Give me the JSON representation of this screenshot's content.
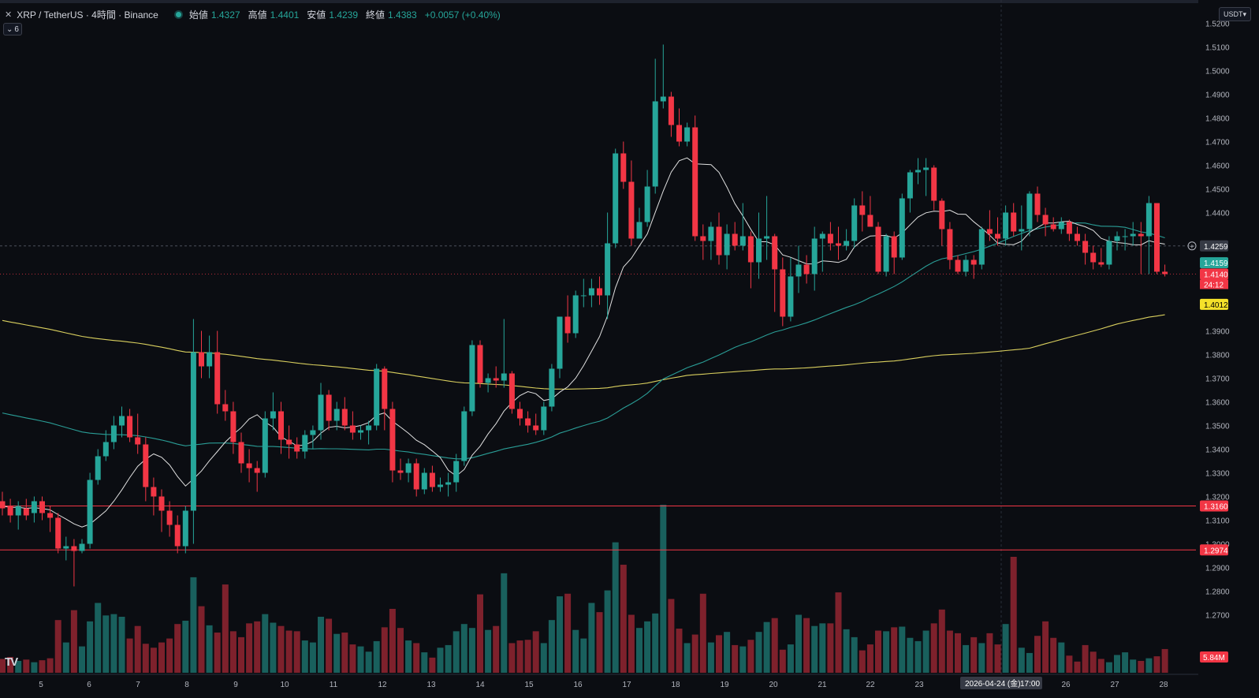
{
  "header": {
    "title": "XRP / TetherUS · 4時間 · Binance",
    "open_label": "始値",
    "open": "1.4327",
    "high_label": "高値",
    "high": "1.4401",
    "low_label": "安値",
    "low": "1.4239",
    "close_label": "終値",
    "close": "1.4383",
    "change": "+0.0057 (+0.40%)"
  },
  "indicator_count": "6",
  "currency_button": "USDT",
  "colors": {
    "up": "#26a69a",
    "down": "#f23645",
    "ma_short": "#e0e0e0",
    "ma_mid": "#2a9d96",
    "ma_long": "#d9cf5e",
    "hline": "#f23645",
    "bg": "#0b0d12"
  },
  "chart_data": {
    "type": "candlestick",
    "ylim": [
      1.2,
      1.53
    ],
    "price_ticks": [
      "1.5200",
      "1.5100",
      "1.5000",
      "1.4900",
      "1.4800",
      "1.4700",
      "1.4600",
      "1.4500",
      "1.4400",
      "1.3900",
      "1.3800",
      "1.3700",
      "1.3600",
      "1.3500",
      "1.3400",
      "1.3300",
      "1.3200",
      "1.3100",
      "1.3000",
      "1.2900",
      "1.2800",
      "1.2700"
    ],
    "date_ticks": [
      "5",
      "6",
      "7",
      "8",
      "9",
      "10",
      "11",
      "12",
      "13",
      "14",
      "15",
      "16",
      "17",
      "18",
      "19",
      "20",
      "21",
      "22",
      "23",
      "26",
      "27",
      "28"
    ],
    "crosshair_date": "2026-04-24 (金)",
    "crosshair_time": "17:00",
    "crosshair_price": "1.4259",
    "last_price": "1.4140",
    "countdown": "24:12",
    "ma_labels": {
      "short": "1.4159",
      "long": "1.4012"
    },
    "hlines": [
      {
        "price": 1.316,
        "label": "1.3160"
      },
      {
        "price": 1.2974,
        "label": "1.2974"
      }
    ],
    "volume_label": "5.84M",
    "candles": [
      [
        1.318,
        1.322,
        1.312,
        1.315
      ],
      [
        1.316,
        1.319,
        1.309,
        1.312
      ],
      [
        1.312,
        1.318,
        1.306,
        1.316
      ],
      [
        1.315,
        1.319,
        1.31,
        1.312
      ],
      [
        1.313,
        1.32,
        1.309,
        1.318
      ],
      [
        1.318,
        1.32,
        1.31,
        1.313
      ],
      [
        1.313,
        1.316,
        1.305,
        1.311
      ],
      [
        1.311,
        1.313,
        1.296,
        1.298
      ],
      [
        1.298,
        1.303,
        1.293,
        1.299
      ],
      [
        1.299,
        1.302,
        1.282,
        1.297
      ],
      [
        1.297,
        1.302,
        1.296,
        1.3
      ],
      [
        1.3,
        1.33,
        1.298,
        1.327
      ],
      [
        1.327,
        1.34,
        1.325,
        1.337
      ],
      [
        1.337,
        1.348,
        1.335,
        1.343
      ],
      [
        1.343,
        1.354,
        1.34,
        1.35
      ],
      [
        1.35,
        1.358,
        1.345,
        1.354
      ],
      [
        1.354,
        1.357,
        1.343,
        1.345
      ],
      [
        1.345,
        1.355,
        1.338,
        1.342
      ],
      [
        1.342,
        1.345,
        1.318,
        1.324
      ],
      [
        1.324,
        1.328,
        1.312,
        1.32
      ],
      [
        1.32,
        1.323,
        1.305,
        1.314
      ],
      [
        1.314,
        1.318,
        1.303,
        1.308
      ],
      [
        1.308,
        1.312,
        1.296,
        1.299
      ],
      [
        1.299,
        1.316,
        1.296,
        1.314
      ],
      [
        1.314,
        1.395,
        1.3,
        1.381
      ],
      [
        1.381,
        1.39,
        1.37,
        1.375
      ],
      [
        1.375,
        1.388,
        1.37,
        1.381
      ],
      [
        1.381,
        1.39,
        1.355,
        1.359
      ],
      [
        1.359,
        1.365,
        1.352,
        1.356
      ],
      [
        1.356,
        1.36,
        1.338,
        1.343
      ],
      [
        1.343,
        1.347,
        1.33,
        1.334
      ],
      [
        1.334,
        1.34,
        1.326,
        1.332
      ],
      [
        1.332,
        1.335,
        1.322,
        1.33
      ],
      [
        1.33,
        1.356,
        1.328,
        1.353
      ],
      [
        1.353,
        1.364,
        1.348,
        1.356
      ],
      [
        1.356,
        1.36,
        1.338,
        1.344
      ],
      [
        1.344,
        1.35,
        1.336,
        1.342
      ],
      [
        1.342,
        1.345,
        1.336,
        1.339
      ],
      [
        1.339,
        1.348,
        1.336,
        1.346
      ],
      [
        1.346,
        1.35,
        1.34,
        1.348
      ],
      [
        1.348,
        1.368,
        1.344,
        1.363
      ],
      [
        1.363,
        1.365,
        1.348,
        1.352
      ],
      [
        1.352,
        1.36,
        1.348,
        1.357
      ],
      [
        1.357,
        1.362,
        1.348,
        1.35
      ],
      [
        1.35,
        1.356,
        1.344,
        1.347
      ],
      [
        1.347,
        1.35,
        1.344,
        1.348
      ],
      [
        1.348,
        1.352,
        1.342,
        1.35
      ],
      [
        1.35,
        1.376,
        1.348,
        1.374
      ],
      [
        1.374,
        1.375,
        1.348,
        1.357
      ],
      [
        1.357,
        1.36,
        1.326,
        1.331
      ],
      [
        1.331,
        1.336,
        1.327,
        1.33
      ],
      [
        1.33,
        1.336,
        1.326,
        1.334
      ],
      [
        1.334,
        1.336,
        1.32,
        1.323
      ],
      [
        1.323,
        1.332,
        1.321,
        1.33
      ],
      [
        1.33,
        1.333,
        1.322,
        1.324
      ],
      [
        1.324,
        1.328,
        1.322,
        1.325
      ],
      [
        1.325,
        1.33,
        1.32,
        1.326
      ],
      [
        1.326,
        1.338,
        1.322,
        1.335
      ],
      [
        1.335,
        1.358,
        1.333,
        1.356
      ],
      [
        1.356,
        1.386,
        1.354,
        1.384
      ],
      [
        1.384,
        1.386,
        1.366,
        1.368
      ],
      [
        1.368,
        1.372,
        1.364,
        1.37
      ],
      [
        1.37,
        1.375,
        1.366,
        1.369
      ],
      [
        1.369,
        1.395,
        1.366,
        1.372
      ],
      [
        1.372,
        1.373,
        1.355,
        1.357
      ],
      [
        1.357,
        1.36,
        1.35,
        1.353
      ],
      [
        1.353,
        1.356,
        1.347,
        1.35
      ],
      [
        1.35,
        1.355,
        1.346,
        1.348
      ],
      [
        1.348,
        1.36,
        1.346,
        1.358
      ],
      [
        1.358,
        1.376,
        1.356,
        1.374
      ],
      [
        1.374,
        1.396,
        1.37,
        1.396
      ],
      [
        1.396,
        1.405,
        1.385,
        1.389
      ],
      [
        1.389,
        1.407,
        1.387,
        1.405
      ],
      [
        1.405,
        1.412,
        1.4,
        1.405
      ],
      [
        1.405,
        1.412,
        1.4,
        1.408
      ],
      [
        1.408,
        1.413,
        1.401,
        1.405
      ],
      [
        1.405,
        1.44,
        1.395,
        1.427
      ],
      [
        1.427,
        1.467,
        1.425,
        1.465
      ],
      [
        1.465,
        1.47,
        1.45,
        1.453
      ],
      [
        1.453,
        1.462,
        1.426,
        1.429
      ],
      [
        1.429,
        1.442,
        1.43,
        1.436
      ],
      [
        1.436,
        1.458,
        1.434,
        1.451
      ],
      [
        1.451,
        1.505,
        1.448,
        1.487
      ],
      [
        1.487,
        1.511,
        1.484,
        1.489
      ],
      [
        1.489,
        1.491,
        1.472,
        1.477
      ],
      [
        1.477,
        1.484,
        1.468,
        1.47
      ],
      [
        1.47,
        1.478,
        1.468,
        1.476
      ],
      [
        1.476,
        1.481,
        1.428,
        1.43
      ],
      [
        1.43,
        1.435,
        1.42,
        1.428
      ],
      [
        1.428,
        1.436,
        1.42,
        1.434
      ],
      [
        1.434,
        1.44,
        1.418,
        1.422
      ],
      [
        1.422,
        1.435,
        1.416,
        1.431
      ],
      [
        1.431,
        1.436,
        1.424,
        1.426
      ],
      [
        1.426,
        1.444,
        1.424,
        1.43
      ],
      [
        1.43,
        1.432,
        1.408,
        1.419
      ],
      [
        1.419,
        1.44,
        1.412,
        1.429
      ],
      [
        1.429,
        1.447,
        1.42,
        1.43
      ],
      [
        1.43,
        1.431,
        1.398,
        1.416
      ],
      [
        1.416,
        1.421,
        1.392,
        1.396
      ],
      [
        1.396,
        1.421,
        1.394,
        1.413
      ],
      [
        1.413,
        1.426,
        1.406,
        1.418
      ],
      [
        1.418,
        1.422,
        1.41,
        1.414
      ],
      [
        1.414,
        1.434,
        1.407,
        1.429
      ],
      [
        1.429,
        1.432,
        1.415,
        1.431
      ],
      [
        1.431,
        1.436,
        1.424,
        1.427
      ],
      [
        1.427,
        1.434,
        1.42,
        1.426
      ],
      [
        1.426,
        1.433,
        1.424,
        1.428
      ],
      [
        1.428,
        1.446,
        1.425,
        1.443
      ],
      [
        1.443,
        1.449,
        1.432,
        1.439
      ],
      [
        1.439,
        1.447,
        1.435,
        1.434
      ],
      [
        1.434,
        1.436,
        1.414,
        1.415
      ],
      [
        1.415,
        1.431,
        1.413,
        1.43
      ],
      [
        1.43,
        1.432,
        1.414,
        1.421
      ],
      [
        1.421,
        1.448,
        1.42,
        1.446
      ],
      [
        1.446,
        1.458,
        1.44,
        1.457
      ],
      [
        1.457,
        1.463,
        1.452,
        1.458
      ],
      [
        1.458,
        1.463,
        1.447,
        1.459
      ],
      [
        1.459,
        1.46,
        1.441,
        1.445
      ],
      [
        1.445,
        1.446,
        1.426,
        1.433
      ],
      [
        1.433,
        1.436,
        1.416,
        1.42
      ],
      [
        1.42,
        1.422,
        1.414,
        1.415
      ],
      [
        1.415,
        1.422,
        1.413,
        1.42
      ],
      [
        1.42,
        1.422,
        1.412,
        1.418
      ],
      [
        1.418,
        1.434,
        1.416,
        1.433
      ],
      [
        1.433,
        1.441,
        1.428,
        1.431
      ],
      [
        1.431,
        1.438,
        1.426,
        1.429
      ],
      [
        1.429,
        1.443,
        1.426,
        1.44
      ],
      [
        1.44,
        1.444,
        1.43,
        1.432
      ],
      [
        1.432,
        1.443,
        1.424,
        1.433
      ],
      [
        1.433,
        1.449,
        1.43,
        1.448
      ],
      [
        1.448,
        1.451,
        1.436,
        1.439
      ],
      [
        1.439,
        1.442,
        1.43,
        1.435
      ],
      [
        1.435,
        1.438,
        1.432,
        1.433
      ],
      [
        1.433,
        1.438,
        1.431,
        1.436
      ],
      [
        1.436,
        1.437,
        1.428,
        1.431
      ],
      [
        1.431,
        1.434,
        1.426,
        1.428
      ],
      [
        1.428,
        1.431,
        1.418,
        1.423
      ],
      [
        1.423,
        1.426,
        1.416,
        1.419
      ],
      [
        1.419,
        1.425,
        1.417,
        1.418
      ],
      [
        1.418,
        1.43,
        1.416,
        1.428
      ],
      [
        1.428,
        1.432,
        1.424,
        1.43
      ],
      [
        1.43,
        1.433,
        1.424,
        1.43
      ],
      [
        1.43,
        1.436,
        1.426,
        1.431
      ],
      [
        1.431,
        1.436,
        1.414,
        1.43
      ],
      [
        1.43,
        1.447,
        1.414,
        1.444
      ],
      [
        1.444,
        1.444,
        1.414,
        1.415
      ],
      [
        1.415,
        1.418,
        1.413,
        1.414
      ]
    ],
    "volumes_millions": [
      2.1,
      2.4,
      1.8,
      2.0,
      1.6,
      1.9,
      2.2,
      8.0,
      4.6,
      9.5,
      4.0,
      7.8,
      10.6,
      8.7,
      8.9,
      8.5,
      5.2,
      7.1,
      4.4,
      3.8,
      4.6,
      5.2,
      7.4,
      7.9,
      14.5,
      10.1,
      7.2,
      6.1,
      13.4,
      6.3,
      5.4,
      7.5,
      7.8,
      8.9,
      7.6,
      7.1,
      6.4,
      6.3,
      4.9,
      4.6,
      8.5,
      8.2,
      5.9,
      6.1,
      4.3,
      4.0,
      3.2,
      4.8,
      6.9,
      9.7,
      6.8,
      4.9,
      4.5,
      3.1,
      2.3,
      3.8,
      4.2,
      6.3,
      7.4,
      6.8,
      11.9,
      6.5,
      7.1,
      15.1,
      4.5,
      4.9,
      5.0,
      6.3,
      4.5,
      8.0,
      11.6,
      12.0,
      6.5,
      5.2,
      10.6,
      9.2,
      12.5,
      19.8,
      16.4,
      8.8,
      6.8,
      7.8,
      9.0,
      25.5,
      11.2,
      6.7,
      4.5,
      5.8,
      12.0,
      4.6,
      5.7,
      6.2,
      4.2,
      4.0,
      5.0,
      6.2,
      7.7,
      8.3,
      3.5,
      4.3,
      8.8,
      8.3,
      7.1,
      7.5,
      7.5,
      12.2,
      6.6,
      5.4,
      3.4,
      4.3,
      6.4,
      6.3,
      6.9,
      7.0,
      5.3,
      4.8,
      6.4,
      7.5,
      9.6,
      6.4,
      6.0,
      4.2,
      5.4,
      4.5,
      6.0,
      4.3,
      7.4,
      17.6,
      3.8,
      3.0,
      5.6,
      7.8,
      5.3,
      4.6,
      2.6,
      1.7,
      4.2,
      3.2,
      2.1,
      1.6,
      2.7,
      3.1,
      2.0,
      1.8,
      2.2,
      2.5,
      3.6,
      6.4,
      1.8
    ]
  }
}
